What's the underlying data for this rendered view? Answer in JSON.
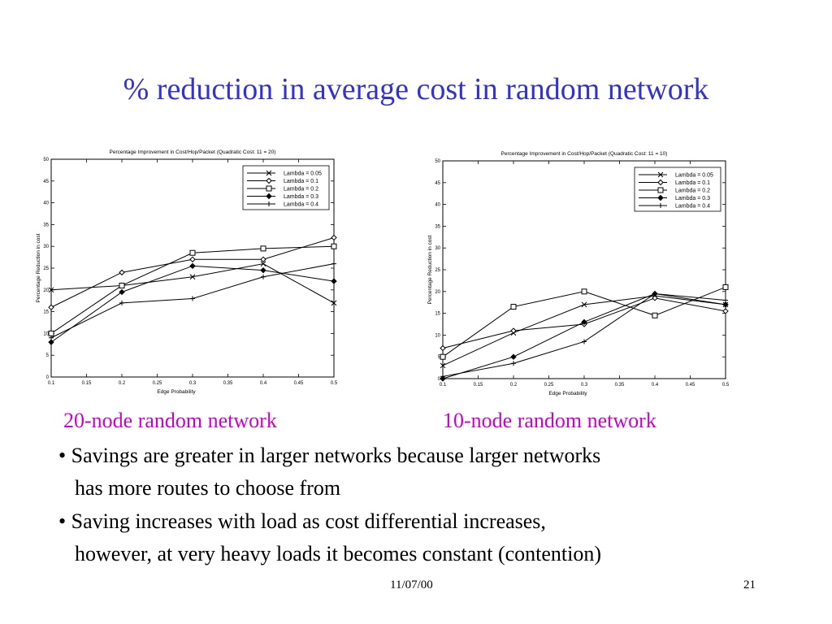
{
  "slide": {
    "title": "% reduction in average cost in random network",
    "caption_left": "20-node random network",
    "caption_right": "10-node random network",
    "bullets": [
      {
        "line1": "• Savings are greater in larger networks because larger networks",
        "line2": "has more routes to choose from"
      },
      {
        "line1": "• Saving increases with load as cost differential increases,",
        "line2": "however, at very heavy loads it becomes constant (contention)"
      }
    ],
    "footer_date": "11/07/00",
    "page_number": "21"
  },
  "chart_data": [
    {
      "type": "line",
      "title": "Percentage Improvement in Cost/Hop/Packet (Quadratic Cost: 11 = 20)",
      "xlabel": "Edge Probability",
      "ylabel": "Percentage Reduction in cost",
      "x": [
        0.1,
        0.2,
        0.3,
        0.4,
        0.5
      ],
      "xlim": [
        0.1,
        0.5
      ],
      "ylim": [
        0,
        50
      ],
      "xticks": [
        "0.1",
        "0.15",
        "0.2",
        "0.25",
        "0.3",
        "0.35",
        "0.4",
        "0.45",
        "0.5"
      ],
      "yticks": [
        "0",
        "5",
        "10",
        "15",
        "20",
        "25",
        "30",
        "35",
        "40",
        "45",
        "50"
      ],
      "legend_position": "top-right",
      "series": [
        {
          "name": "Lambda = 0.05",
          "marker": "x",
          "values": [
            20,
            21,
            23,
            26,
            17
          ]
        },
        {
          "name": "Lambda = 0.1",
          "marker": "diamond",
          "values": [
            16,
            24,
            27,
            27,
            32
          ]
        },
        {
          "name": "Lambda = 0.2",
          "marker": "square",
          "values": [
            10,
            21,
            28.5,
            29.5,
            30
          ]
        },
        {
          "name": "Lambda = 0.3",
          "marker": "filled-diamond",
          "values": [
            8,
            19.5,
            25.5,
            24.5,
            22
          ]
        },
        {
          "name": "Lambda = 0.4",
          "marker": "plus",
          "values": [
            9,
            17,
            18,
            23,
            26
          ]
        }
      ]
    },
    {
      "type": "line",
      "title": "Percentage Improvement in Cost/Hop/Packet (Quadratic Cost: 11 = 10)",
      "xlabel": "Edge Probability",
      "ylabel": "Percentage Reduction in cost",
      "x": [
        0.1,
        0.2,
        0.3,
        0.4,
        0.5
      ],
      "xlim": [
        0.1,
        0.5
      ],
      "ylim": [
        0,
        50
      ],
      "xticks": [
        "0.1",
        "0.15",
        "0.2",
        "0.25",
        "0.3",
        "0.35",
        "0.4",
        "0.45",
        "0.5"
      ],
      "yticks": [
        "0",
        "5",
        "10",
        "15",
        "20",
        "25",
        "30",
        "35",
        "40",
        "45",
        "50"
      ],
      "legend_position": "top-right",
      "series": [
        {
          "name": "Lambda = 0.05",
          "marker": "x",
          "values": [
            3,
            10.5,
            17,
            19,
            17
          ]
        },
        {
          "name": "Lambda = 0.1",
          "marker": "diamond",
          "values": [
            7,
            11,
            12.5,
            18.5,
            15.5
          ]
        },
        {
          "name": "Lambda = 0.2",
          "marker": "square",
          "values": [
            5,
            16.5,
            20,
            14.5,
            21
          ]
        },
        {
          "name": "Lambda = 0.3",
          "marker": "filled-diamond",
          "values": [
            0,
            5,
            13,
            19.5,
            17
          ]
        },
        {
          "name": "Lambda = 0.4",
          "marker": "plus",
          "values": [
            0.5,
            3.5,
            8.5,
            19.5,
            18
          ]
        }
      ]
    }
  ]
}
